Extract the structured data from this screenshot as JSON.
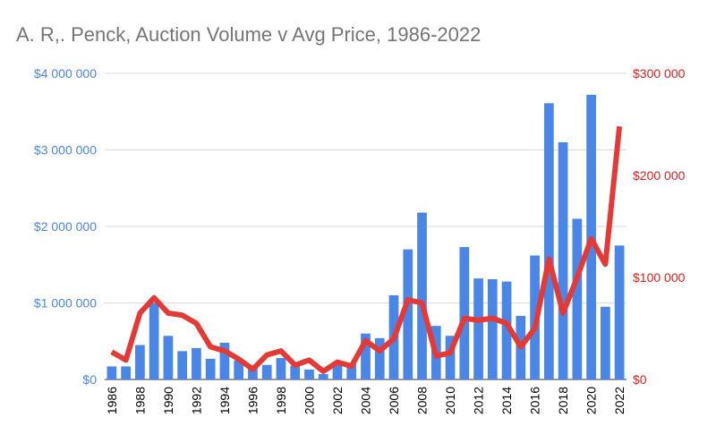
{
  "chart_data": {
    "type": "bar",
    "title": "A. R,. Penck, Auction Volume v Avg Price, 1986-2022",
    "categories": [
      "1986",
      "1987",
      "1988",
      "1989",
      "1990",
      "1991",
      "1992",
      "1993",
      "1994",
      "1995",
      "1996",
      "1997",
      "1998",
      "1999",
      "2000",
      "2001",
      "2002",
      "2003",
      "2004",
      "2005",
      "2006",
      "2007",
      "2008",
      "2009",
      "2010",
      "2011",
      "2012",
      "2013",
      "2014",
      "2015",
      "2016",
      "2017",
      "2018",
      "2019",
      "2020",
      "2021",
      "2022"
    ],
    "x_tick_labels": [
      "1986",
      "1988",
      "1990",
      "1992",
      "1994",
      "1996",
      "1998",
      "2000",
      "2002",
      "2004",
      "2006",
      "2008",
      "2010",
      "2012",
      "2014",
      "2016",
      "2018",
      "2020",
      "2022"
    ],
    "series": [
      {
        "type": "bar",
        "axis": "left",
        "color": "#4a86e8",
        "values": [
          170000,
          170000,
          450000,
          1000000,
          570000,
          370000,
          410000,
          270000,
          480000,
          250000,
          160000,
          190000,
          280000,
          180000,
          130000,
          70000,
          200000,
          200000,
          600000,
          540000,
          1100000,
          1700000,
          2180000,
          700000,
          570000,
          1730000,
          1320000,
          1310000,
          1280000,
          830000,
          1620000,
          3610000,
          3100000,
          2100000,
          3720000,
          950000,
          1750000
        ]
      },
      {
        "type": "line",
        "axis": "right",
        "color": "#e53935",
        "values": [
          27000,
          19000,
          65000,
          80000,
          65000,
          63000,
          55000,
          32000,
          28000,
          20000,
          10000,
          24000,
          28000,
          14000,
          19000,
          8000,
          17000,
          13000,
          38000,
          28000,
          40000,
          78000,
          75000,
          23000,
          26000,
          60000,
          58000,
          60000,
          55000,
          32000,
          50000,
          118000,
          65000,
          100000,
          138000,
          113000,
          248000
        ]
      }
    ],
    "y_left": {
      "min": 0,
      "max": 4000000,
      "ticks": [
        0,
        1000000,
        2000000,
        3000000,
        4000000
      ],
      "tick_labels": [
        "$0",
        "$1 000 000",
        "$2 000 000",
        "$3 000 000",
        "$4 000 000"
      ]
    },
    "y_right": {
      "min": 0,
      "max": 300000,
      "ticks": [
        0,
        100000,
        200000,
        300000
      ],
      "tick_labels": [
        "$0",
        "$100 000",
        "$200 000",
        "$300 000"
      ]
    },
    "grid": true,
    "legend": "none"
  }
}
